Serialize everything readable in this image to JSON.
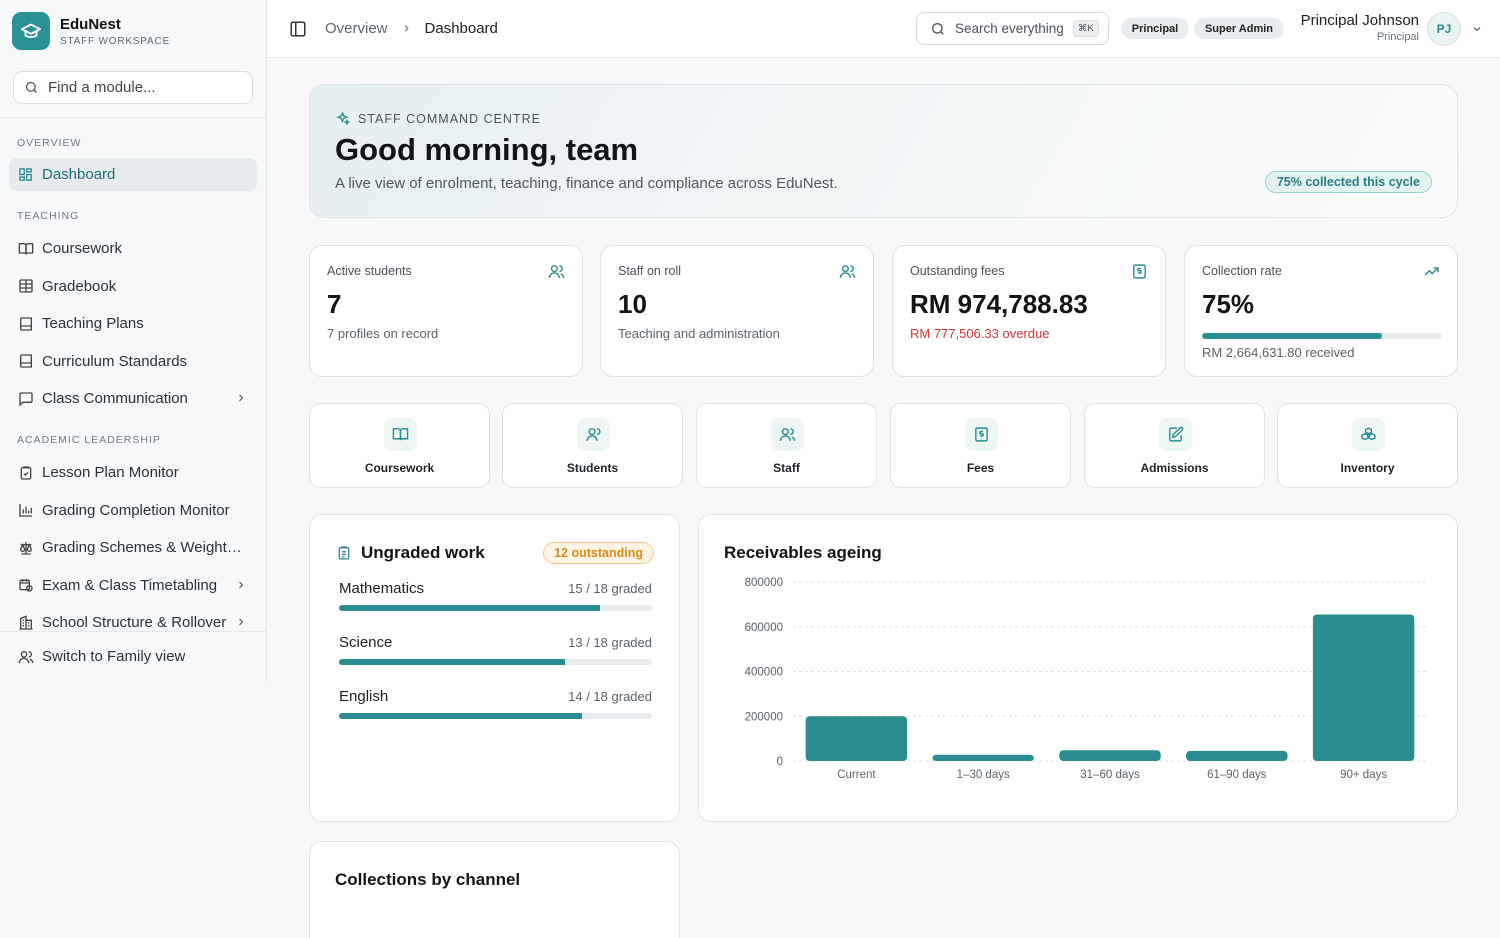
{
  "brand": {
    "name": "EduNest",
    "subtitle": "STAFF WORKSPACE"
  },
  "sidebar": {
    "search_placeholder": "Find a module...",
    "sections": [
      {
        "label": "OVERVIEW",
        "items": [
          {
            "label": "Dashboard",
            "icon": "dashboard-grid-icon",
            "active": true
          }
        ]
      },
      {
        "label": "TEACHING",
        "items": [
          {
            "label": "Coursework",
            "icon": "book-icon"
          },
          {
            "label": "Gradebook",
            "icon": "table-icon"
          },
          {
            "label": "Teaching Plans",
            "icon": "notebook-icon"
          },
          {
            "label": "Curriculum Standards",
            "icon": "notebook-icon"
          },
          {
            "label": "Class Communication",
            "icon": "message-icon",
            "has_submenu": true
          }
        ]
      },
      {
        "label": "ACADEMIC LEADERSHIP",
        "items": [
          {
            "label": "Lesson Plan Monitor",
            "icon": "clipboard-check-icon"
          },
          {
            "label": "Grading Completion Monitor",
            "icon": "bar-chart-icon"
          },
          {
            "label": "Grading Schemes & Weighti...",
            "icon": "scale-icon"
          },
          {
            "label": "Exam & Class Timetabling",
            "icon": "calendar-clock-icon",
            "has_submenu": true
          },
          {
            "label": "School Structure & Rollover",
            "icon": "building-icon",
            "has_submenu": true
          }
        ]
      }
    ],
    "footer_item": {
      "label": "Switch to Family view",
      "icon": "users-icon"
    }
  },
  "topbar": {
    "breadcrumb": [
      "Overview",
      "Dashboard"
    ],
    "search_label": "Search everything",
    "search_shortcut": "⌘K",
    "role_badges": [
      "Principal",
      "Super Admin"
    ],
    "user_name": "Principal Johnson",
    "user_role": "Principal",
    "avatar_initials": "PJ"
  },
  "hero": {
    "kicker": "STAFF COMMAND CENTRE",
    "title": "Good morning, team",
    "description": "A live view of enrolment, teaching, finance and compliance across EduNest.",
    "chip": "75% collected this cycle"
  },
  "stats": [
    {
      "label": "Active students",
      "value": "7",
      "sub": "7 profiles on record",
      "icon": "users-icon"
    },
    {
      "label": "Staff on roll",
      "value": "10",
      "sub": "Teaching and administration",
      "icon": "users-icon"
    },
    {
      "label": "Outstanding fees",
      "value": "RM 974,788.83",
      "sub": "RM 777,506.33 overdue",
      "icon": "receipt-icon"
    },
    {
      "label": "Collection rate",
      "value": "75%",
      "progress": 0.75,
      "sub": "RM 2,664,631.80 received",
      "icon": "trending-up-icon"
    }
  ],
  "quick_links": [
    {
      "label": "Coursework",
      "icon": "book-icon"
    },
    {
      "label": "Students",
      "icon": "user-icon"
    },
    {
      "label": "Staff",
      "icon": "users-icon"
    },
    {
      "label": "Fees",
      "icon": "receipt-icon"
    },
    {
      "label": "Admissions",
      "icon": "edit-document-icon"
    },
    {
      "label": "Inventory",
      "icon": "boxes-icon"
    }
  ],
  "ungraded": {
    "title": "Ungraded work",
    "badge": "12 outstanding",
    "subjects": [
      {
        "name": "Mathematics",
        "status": "15 / 18 graded",
        "progress": 0.8333
      },
      {
        "name": "Science",
        "status": "13 / 18 graded",
        "progress": 0.7222
      },
      {
        "name": "English",
        "status": "14 / 18 graded",
        "progress": 0.7778
      }
    ]
  },
  "receivables": {
    "title": "Receivables ageing"
  },
  "collections": {
    "title": "Collections by channel"
  },
  "colors": {
    "accent": "#2a8d92",
    "danger": "#d2333a",
    "warning": "#d98b1c"
  },
  "chart_data": {
    "type": "bar",
    "title": "Receivables ageing",
    "categories": [
      "Current",
      "1–30 days",
      "31–60 days",
      "61–90 days",
      "90+ days"
    ],
    "values": [
      200000,
      28000,
      48000,
      45000,
      655000
    ],
    "y_ticks": [
      0,
      200000,
      400000,
      600000,
      800000
    ],
    "ylim": [
      0,
      800000
    ],
    "grid": true,
    "color": "#2a8d92"
  }
}
